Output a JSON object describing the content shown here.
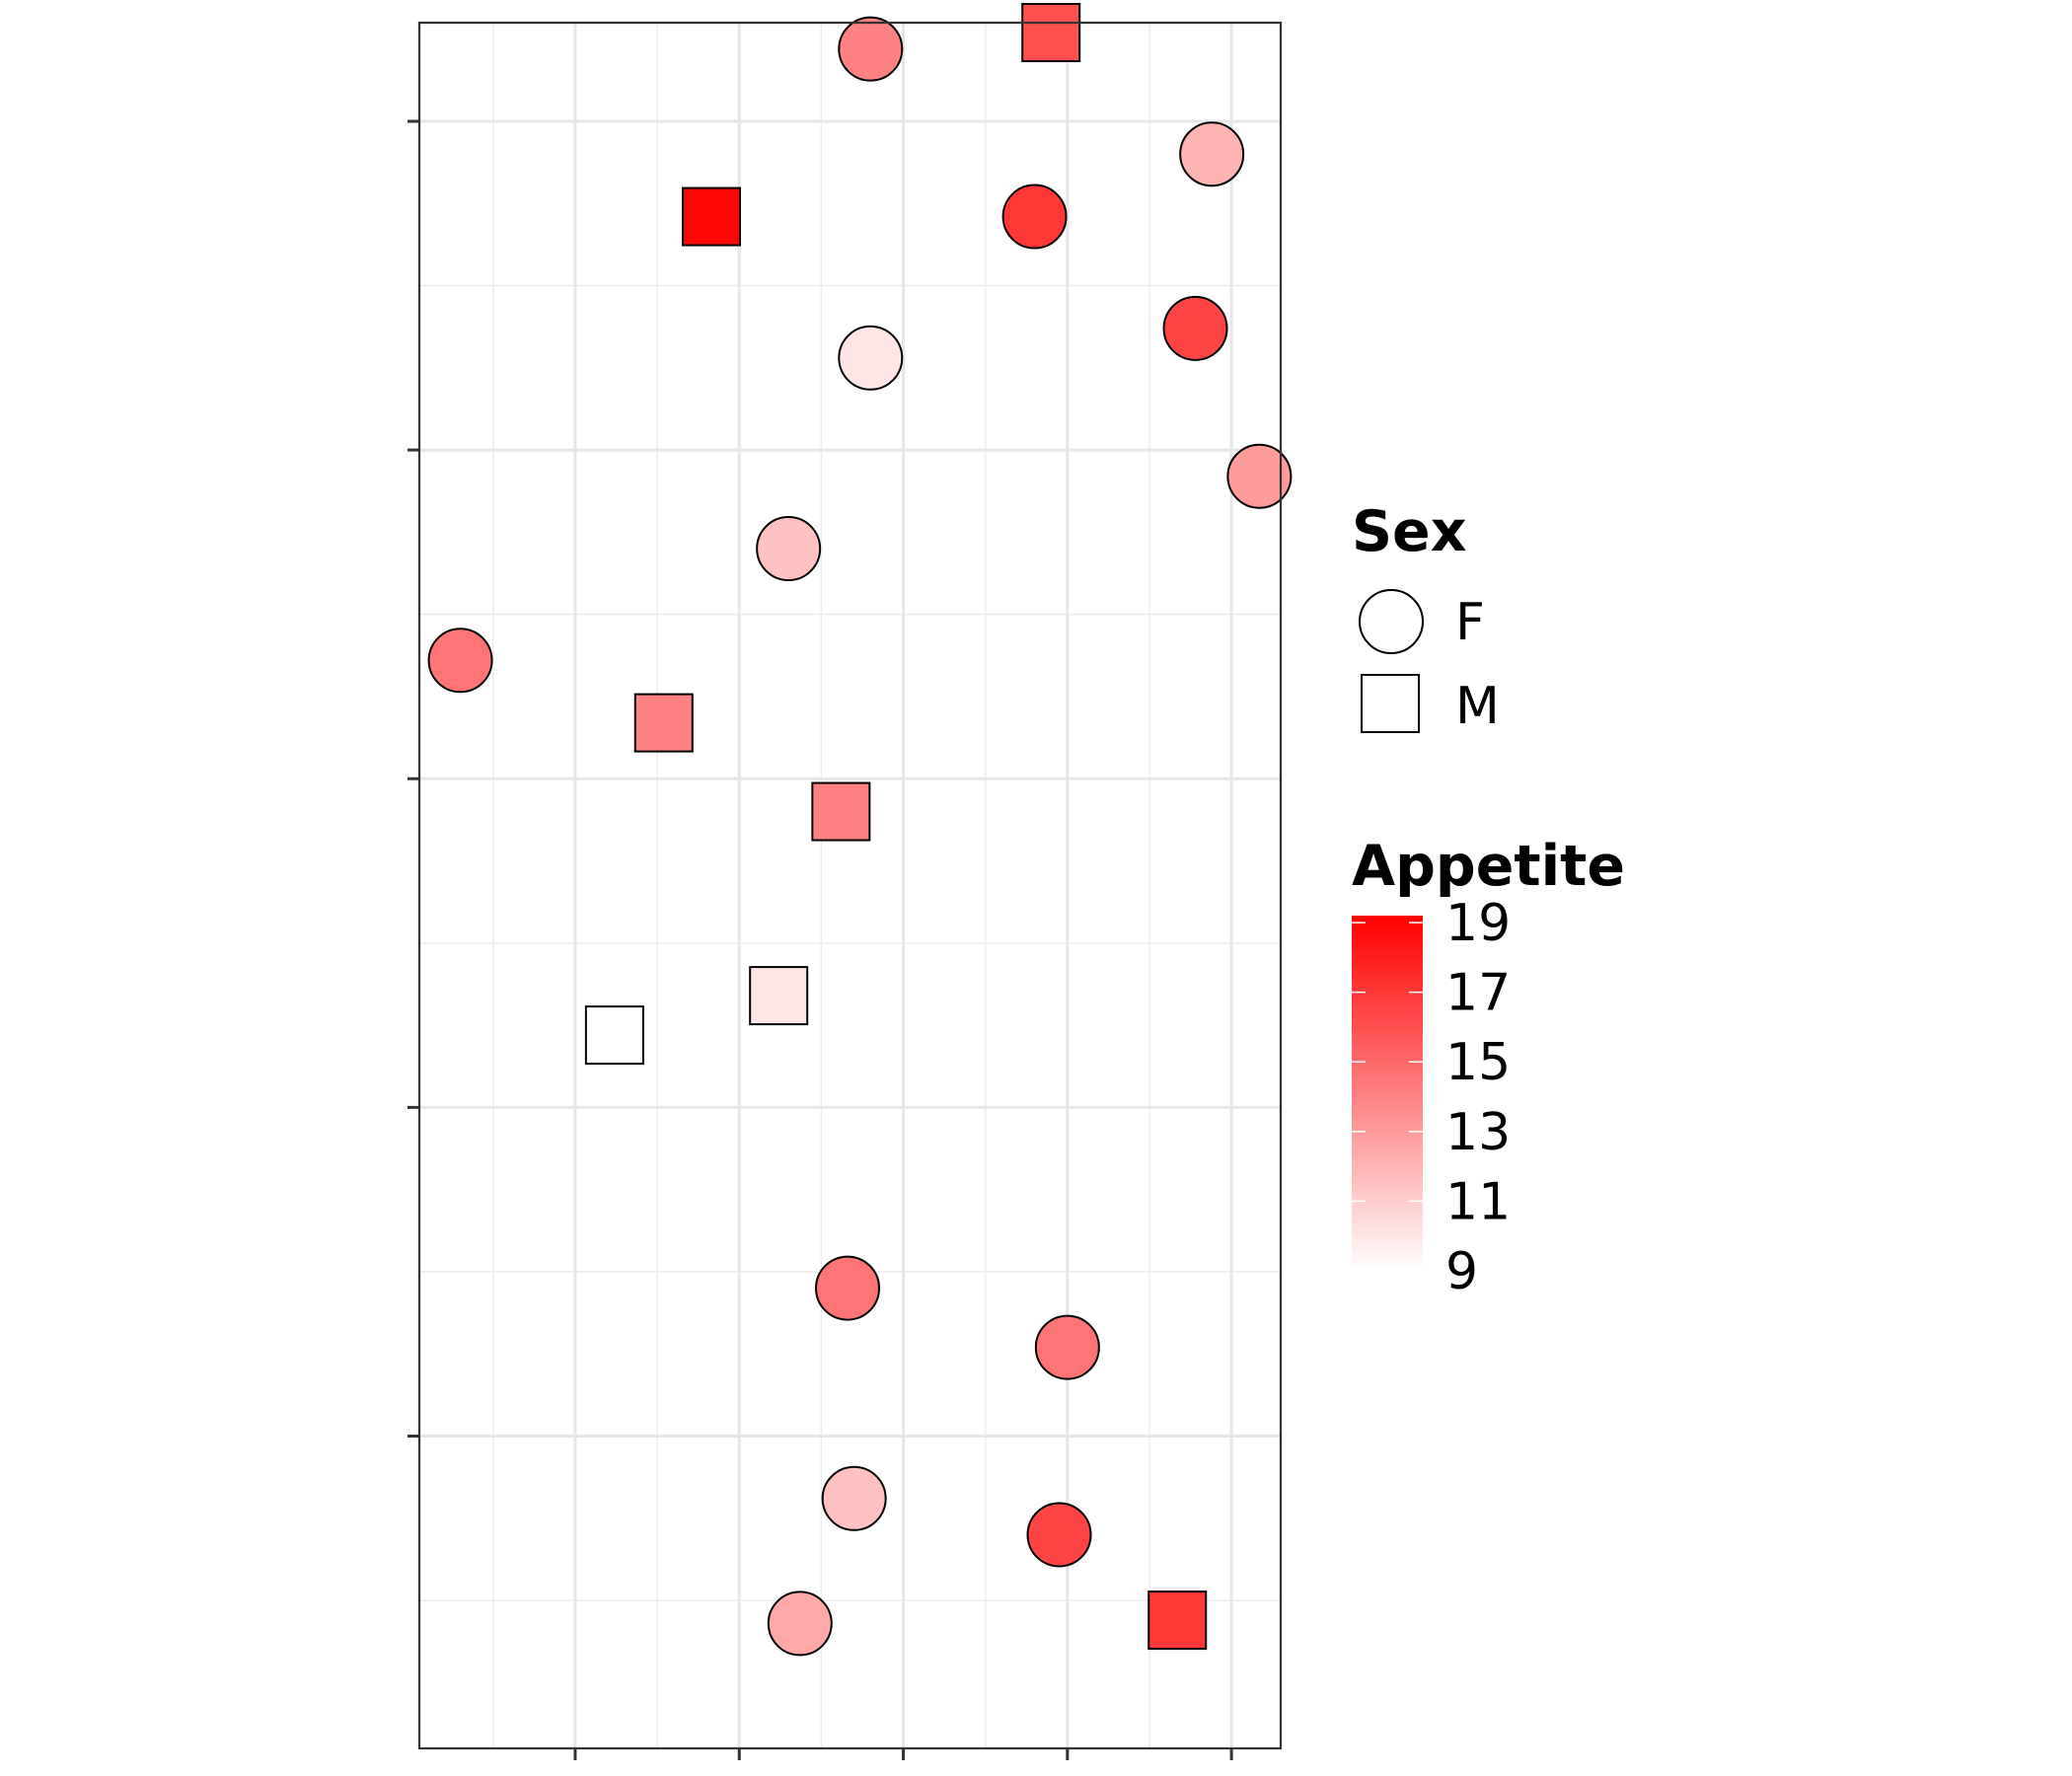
{
  "chart_data": {
    "type": "scatter",
    "title": "",
    "xlabel": "",
    "ylabel": "",
    "xlim": [
      0.55,
      5.8
    ],
    "ylim": [
      0.55,
      5.8
    ],
    "x_major_ticks": [
      1.5,
      2.5,
      3.5,
      4.5,
      5.5
    ],
    "x_minor_grid": [
      1,
      2,
      3,
      4,
      5
    ],
    "y_major_ticks": [
      1.5,
      2.5,
      3.5,
      4.5,
      5.5
    ],
    "y_minor_grid": [
      1,
      2,
      3,
      4,
      5
    ],
    "grid": true,
    "tick_labels_shown": false,
    "shape_legend": {
      "title": "Sex",
      "items": [
        {
          "label": "F",
          "shape": "circle"
        },
        {
          "label": "M",
          "shape": "square"
        }
      ]
    },
    "color_legend": {
      "title": "Appetite",
      "min": 9,
      "max": 19.2,
      "low_color": "#ffffff",
      "high_color": "#ff0000",
      "breaks": [
        9,
        11,
        13,
        15,
        17,
        19
      ],
      "labels": [
        "9",
        "11",
        "13",
        "15",
        "17",
        "19"
      ]
    },
    "points": [
      {
        "x": 3.3,
        "y": 5.72,
        "sex": "F",
        "appetite": 14
      },
      {
        "x": 4.4,
        "y": 5.77,
        "sex": "M",
        "appetite": 16
      },
      {
        "x": 5.38,
        "y": 5.4,
        "sex": "F",
        "appetite": 12
      },
      {
        "x": 2.33,
        "y": 5.21,
        "sex": "M",
        "appetite": 19
      },
      {
        "x": 4.3,
        "y": 5.21,
        "sex": "F",
        "appetite": 17
      },
      {
        "x": 5.28,
        "y": 4.87,
        "sex": "F",
        "appetite": 16.5
      },
      {
        "x": 3.3,
        "y": 4.78,
        "sex": "F",
        "appetite": 10
      },
      {
        "x": 5.67,
        "y": 4.42,
        "sex": "F",
        "appetite": 13
      },
      {
        "x": 2.8,
        "y": 4.2,
        "sex": "F",
        "appetite": 11.5
      },
      {
        "x": 0.8,
        "y": 3.86,
        "sex": "F",
        "appetite": 14.5
      },
      {
        "x": 2.04,
        "y": 3.67,
        "sex": "M",
        "appetite": 14
      },
      {
        "x": 3.12,
        "y": 3.4,
        "sex": "M",
        "appetite": 14
      },
      {
        "x": 2.74,
        "y": 2.84,
        "sex": "M",
        "appetite": 10
      },
      {
        "x": 1.74,
        "y": 2.72,
        "sex": "M",
        "appetite": 9
      },
      {
        "x": 3.16,
        "y": 1.95,
        "sex": "F",
        "appetite": 14.5
      },
      {
        "x": 4.5,
        "y": 1.77,
        "sex": "F",
        "appetite": 14.5
      },
      {
        "x": 3.2,
        "y": 1.31,
        "sex": "F",
        "appetite": 11.5
      },
      {
        "x": 4.45,
        "y": 1.2,
        "sex": "F",
        "appetite": 16.5
      },
      {
        "x": 2.87,
        "y": 0.93,
        "sex": "F",
        "appetite": 12.5
      },
      {
        "x": 5.17,
        "y": 0.94,
        "sex": "M",
        "appetite": 17
      }
    ]
  }
}
